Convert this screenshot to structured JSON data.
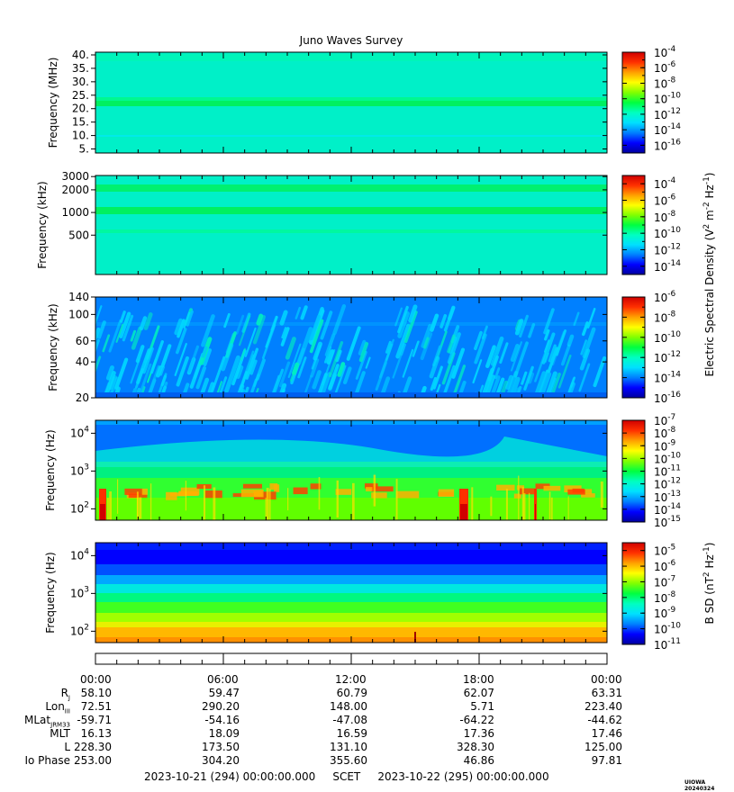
{
  "chart_data": {
    "type": "heatmap",
    "title": "Juno Waves Survey",
    "time_axis": {
      "ticks": [
        "00:00",
        "06:00",
        "12:00",
        "18:00",
        "00:00"
      ],
      "start": "2023-10-21 (294) 00:00:00.000",
      "label": "SCET",
      "end": "2023-10-22 (295) 00:00:00.000"
    },
    "panels": [
      {
        "id": "hfwbr-mhz",
        "ylabel": "Frequency (MHz)",
        "scale": "linear",
        "yticks": [
          "5.",
          "10.",
          "15.",
          "20.",
          "25.",
          "30.",
          "35.",
          "40."
        ],
        "ytick_values": [
          5,
          10,
          15,
          20,
          25,
          30,
          35,
          40
        ],
        "ylim": [
          3.5,
          41
        ],
        "colorbar_ticks": [
          "-4",
          "-6",
          "-8",
          "-10",
          "-12",
          "-14",
          "-16"
        ],
        "colorbar_range": [
          -17,
          -4
        ]
      },
      {
        "id": "hf-khz",
        "ylabel": "Frequency (kHz)",
        "scale": "log",
        "yticks": [
          "3000",
          "2000",
          "1000",
          "500"
        ],
        "ytick_values": [
          3000,
          2000,
          1000,
          500
        ],
        "ylim": [
          150,
          3100
        ],
        "colorbar_ticks": [
          "-4",
          "-6",
          "-8",
          "-10",
          "-12",
          "-14"
        ],
        "colorbar_range": [
          -15,
          -3
        ]
      },
      {
        "id": "lf-khz",
        "ylabel": "Frequency (kHz)",
        "scale": "log",
        "yticks": [
          "140",
          "100",
          "60",
          "40",
          "20"
        ],
        "ytick_values": [
          140,
          100,
          60,
          40,
          20
        ],
        "ylim": [
          20,
          140
        ],
        "colorbar_ticks": [
          "-6",
          "-8",
          "-10",
          "-12",
          "-14",
          "-16"
        ],
        "colorbar_range": [
          -16,
          -6
        ]
      },
      {
        "id": "lfr-e-hz",
        "ylabel": "Frequency (Hz)",
        "scale": "log",
        "yticks": [
          "4",
          "3",
          "2"
        ],
        "ytick_values": [
          10000,
          1000,
          100
        ],
        "ylim": [
          50,
          22000
        ],
        "colorbar_ticks": [
          "-7",
          "-8",
          "-9",
          "-10",
          "-11",
          "-12",
          "-13",
          "-14",
          "-15"
        ],
        "colorbar_range": [
          -15,
          -7
        ]
      },
      {
        "id": "lfr-b-hz",
        "ylabel": "Frequency (Hz)",
        "scale": "log",
        "yticks": [
          "4",
          "3",
          "2"
        ],
        "ytick_values": [
          10000,
          1000,
          100
        ],
        "ylim": [
          50,
          22000
        ],
        "colorbar_ticks": [
          "-5",
          "-6",
          "-7",
          "-8",
          "-9",
          "-10",
          "-11"
        ],
        "colorbar_range": [
          -11,
          -4.5
        ]
      }
    ],
    "colorbar_titles": {
      "electric": "Electric Spectral Density (V",
      "electric_sup1": "2",
      "electric_mid": " m",
      "electric_sup2": "-2",
      "electric_mid2": " Hz",
      "electric_sup3": "-1",
      "electric_end": ")",
      "magnetic": "B SD (nT",
      "magnetic_sup1": "2",
      "magnetic_mid": " Hz",
      "magnetic_sup2": "-1",
      "magnetic_end": ")"
    },
    "tick_base": "10"
  },
  "ephemeris": {
    "labels": [
      "R",
      "Lon",
      "MLat",
      "MLT",
      "L",
      "Io Phase"
    ],
    "label_subs": [
      "J",
      "III",
      "JRM33",
      "",
      "",
      ""
    ],
    "rows": [
      [
        "58.10",
        "59.47",
        "60.79",
        "62.07",
        "63.31"
      ],
      [
        "72.51",
        "290.20",
        "148.00",
        "5.71",
        "223.40"
      ],
      [
        "-59.71",
        "-54.16",
        "-47.08",
        "-64.22",
        "-44.62"
      ],
      [
        "16.13",
        "18.09",
        "16.59",
        "17.36",
        "17.46"
      ],
      [
        "228.30",
        "173.50",
        "131.10",
        "328.30",
        "125.00"
      ],
      [
        "253.00",
        "304.20",
        "355.60",
        "46.86",
        "97.81"
      ]
    ]
  },
  "stamp": "UIOWA 20240324",
  "colors": {
    "colormap": [
      "#0000a0",
      "#0000ff",
      "#0080ff",
      "#00e0ff",
      "#00ffc0",
      "#00ff40",
      "#80ff00",
      "#ffff00",
      "#ffa000",
      "#ff3000",
      "#d00000"
    ]
  }
}
